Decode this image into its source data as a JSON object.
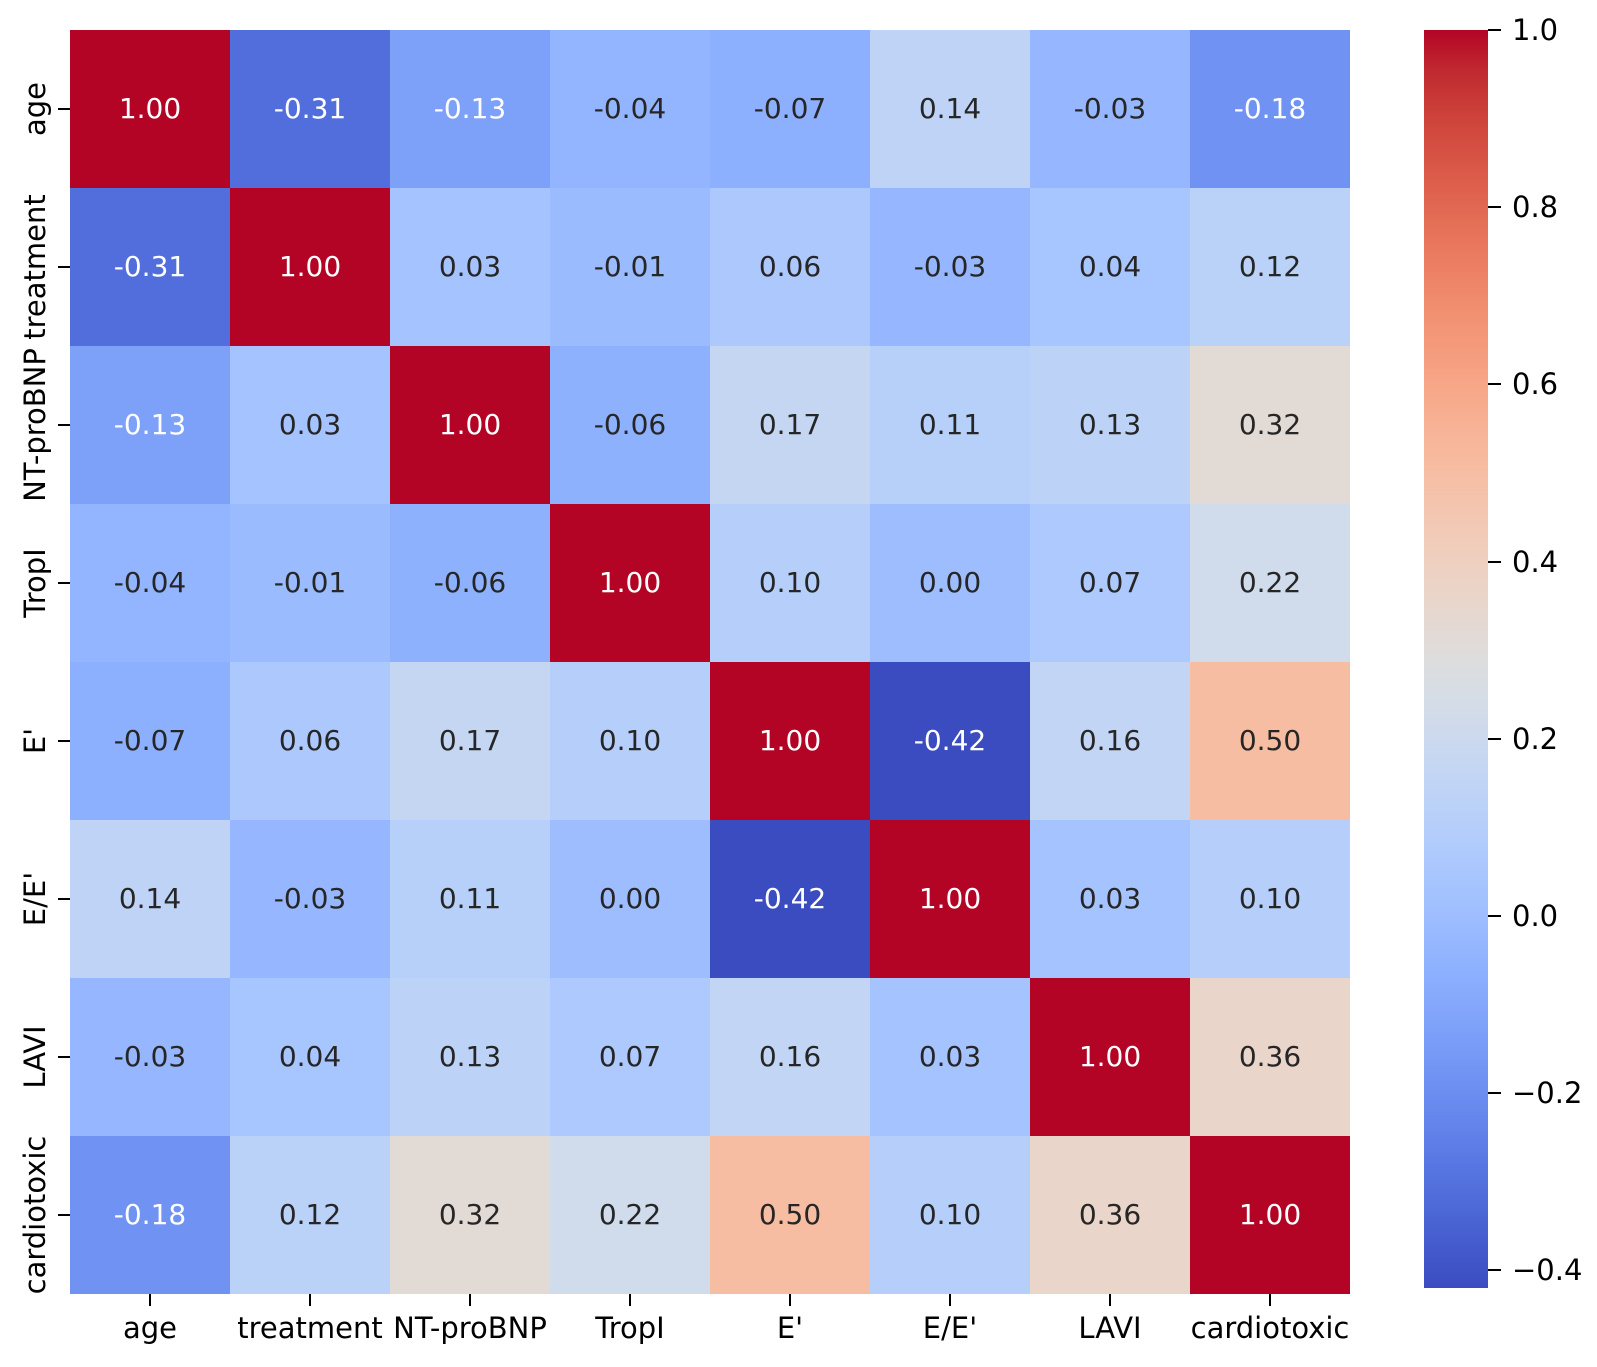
{
  "chart_data": {
    "type": "heatmap",
    "categories": [
      "age",
      "treatment",
      "NT-proBNP",
      "TropI",
      "E'",
      "E/E'",
      "LAVI",
      "cardiotoxic"
    ],
    "matrix": [
      [
        1.0,
        -0.31,
        -0.13,
        -0.04,
        -0.07,
        0.14,
        -0.03,
        -0.18
      ],
      [
        -0.31,
        1.0,
        0.03,
        -0.01,
        0.06,
        -0.03,
        0.04,
        0.12
      ],
      [
        -0.13,
        0.03,
        1.0,
        -0.06,
        0.17,
        0.11,
        0.13,
        0.32
      ],
      [
        -0.04,
        -0.01,
        -0.06,
        1.0,
        0.1,
        0.0,
        0.07,
        0.22
      ],
      [
        -0.07,
        0.06,
        0.17,
        0.1,
        1.0,
        -0.42,
        0.16,
        0.5
      ],
      [
        0.14,
        -0.03,
        0.11,
        0.0,
        -0.42,
        1.0,
        0.03,
        0.1
      ],
      [
        -0.03,
        0.04,
        0.13,
        0.07,
        0.16,
        0.03,
        1.0,
        0.36
      ],
      [
        -0.18,
        0.12,
        0.32,
        0.22,
        0.5,
        0.1,
        0.36,
        1.0
      ]
    ],
    "vmin": -0.42,
    "vmax": 1.0,
    "colormap": "coolwarm",
    "annotation_decimals": 2,
    "grid": false,
    "legend_position": "right-colorbar",
    "colorbar": {
      "ticks": [
        1.0,
        0.8,
        0.6,
        0.4,
        0.2,
        0.0,
        -0.2,
        -0.4
      ],
      "tick_labels": [
        "1.0",
        "0.8",
        "0.6",
        "0.4",
        "0.2",
        "0.0",
        "−0.2",
        "−0.4"
      ]
    }
  },
  "colors": {
    "background": "#ffffff",
    "colormap_min": "#3b4cc0",
    "colormap_mid": "#dddddd",
    "colormap_max": "#b40426",
    "annotation_dark": "#262626",
    "annotation_light": "#ffffff",
    "axis_text": "#000000"
  }
}
